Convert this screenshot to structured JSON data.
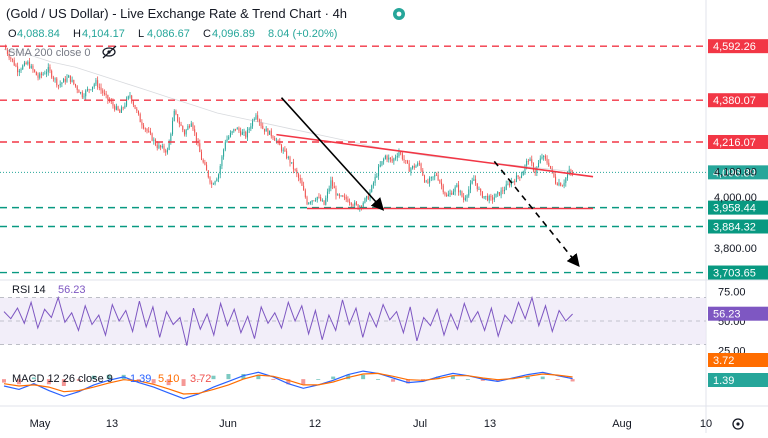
{
  "header": {
    "title": "(Gold / US Dollar) - Live Exchange Rate & Trend Chart · 4h",
    "ohlc": [
      {
        "label": "O",
        "value": "4,088.84"
      },
      {
        "label": "H",
        "value": "4,104.17"
      },
      {
        "label": "L",
        "value": "4,086.67"
      },
      {
        "label": "C",
        "value": "4,096.89"
      }
    ],
    "change": "8.04 (+0.20%)",
    "indicator_label": "SMA 200 close 0"
  },
  "colors": {
    "up": "#26a69a",
    "down": "#ef5350",
    "resistance": "#f23645",
    "support": "#089981",
    "rsi_line": "#7e57c2",
    "rsi_band": "#ede7f6",
    "macd_line": "#2962ff",
    "signal_line": "#ff6d00",
    "price_tag": "#2a2e39",
    "last_tag": "#26a69a"
  },
  "chart_data": [
    {
      "type": "candlestick",
      "title": "(Gold / US Dollar) - Live Exchange Rate & Trend Chart · 4h",
      "timeframe": "4h",
      "x_labels": [
        "May",
        "13",
        "Jun",
        "12",
        "Jul",
        "13",
        "Aug",
        "10"
      ],
      "ylim": [
        3690,
        4640
      ],
      "y_ticks": [
        3800,
        4000,
        4100
      ],
      "current_price": 4096.89,
      "path_points": [
        [
          0,
          4590
        ],
        [
          8,
          4500
        ],
        [
          14,
          4525
        ],
        [
          20,
          4470
        ],
        [
          26,
          4500
        ],
        [
          32,
          4440
        ],
        [
          38,
          4470
        ],
        [
          46,
          4400
        ],
        [
          54,
          4450
        ],
        [
          60,
          4390
        ],
        [
          68,
          4330
        ],
        [
          74,
          4400
        ],
        [
          80,
          4300
        ],
        [
          86,
          4240
        ],
        [
          90,
          4200
        ],
        [
          96,
          4180
        ],
        [
          100,
          4330
        ],
        [
          106,
          4250
        ],
        [
          110,
          4300
        ],
        [
          116,
          4150
        ],
        [
          122,
          4050
        ],
        [
          126,
          4090
        ],
        [
          130,
          4220
        ],
        [
          136,
          4270
        ],
        [
          142,
          4240
        ],
        [
          148,
          4330
        ],
        [
          152,
          4270
        ],
        [
          158,
          4240
        ],
        [
          164,
          4180
        ],
        [
          168,
          4140
        ],
        [
          174,
          4060
        ],
        [
          178,
          3980
        ],
        [
          184,
          4000
        ],
        [
          188,
          3970
        ],
        [
          192,
          4060
        ],
        [
          196,
          4000
        ],
        [
          202,
          3990
        ],
        [
          208,
          3960
        ],
        [
          214,
          4000
        ],
        [
          220,
          4110
        ],
        [
          224,
          4160
        ],
        [
          228,
          4140
        ],
        [
          232,
          4180
        ],
        [
          238,
          4110
        ],
        [
          244,
          4130
        ],
        [
          248,
          4050
        ],
        [
          254,
          4090
        ],
        [
          260,
          4000
        ],
        [
          266,
          4040
        ],
        [
          270,
          3990
        ],
        [
          276,
          4070
        ],
        [
          280,
          4010
        ],
        [
          286,
          3990
        ],
        [
          292,
          4020
        ],
        [
          298,
          4060
        ],
        [
          304,
          4090
        ],
        [
          308,
          4150
        ],
        [
          312,
          4100
        ],
        [
          316,
          4160
        ],
        [
          320,
          4130
        ],
        [
          324,
          4060
        ],
        [
          328,
          4050
        ],
        [
          332,
          4100
        ],
        [
          334,
          4090
        ]
      ],
      "series": [
        {
          "name": "SMA 200 close 0",
          "values": [
            4580,
            4560,
            4530,
            4510,
            4480,
            4450,
            4420,
            4390,
            4360,
            4330,
            4310,
            4290,
            4270,
            4250,
            4230,
            4210,
            4190,
            4175,
            4160,
            4150,
            4140,
            4130,
            4120,
            4110,
            4100
          ]
        }
      ],
      "horizontal_levels": [
        {
          "value": 4592.26,
          "label": "4,592.26",
          "kind": "resistance",
          "width": 1.4
        },
        {
          "value": 4380.07,
          "label": "4,380.07",
          "kind": "resistance",
          "width": 1.4
        },
        {
          "value": 4216.07,
          "label": "4,216.07",
          "kind": "resistance",
          "width": 1.4
        },
        {
          "value": 3958.44,
          "label": "3,958.44",
          "kind": "support",
          "width": 1.4
        },
        {
          "value": 3884.32,
          "label": "3,884.32",
          "kind": "support",
          "width": 1.4
        },
        {
          "value": 3703.65,
          "label": "3,703.65",
          "kind": "support",
          "width": 1.4
        }
      ],
      "trendlines": [
        {
          "from": [
            160,
            4245
          ],
          "to": [
            346,
            4080
          ],
          "style": "solid",
          "color": "resistance"
        },
        {
          "from": [
            178,
            3955
          ],
          "to": [
            346,
            3955
          ],
          "style": "solid",
          "color": "resistance"
        },
        {
          "from": [
            163,
            4390
          ],
          "to": [
            222,
            3955
          ],
          "style": "solid",
          "color": "#000000",
          "arrow": true
        },
        {
          "from": [
            288,
            4140
          ],
          "to": [
            337,
            3735
          ],
          "style": "dashed",
          "color": "#000000",
          "arrow": true
        }
      ]
    },
    {
      "type": "line",
      "title": "RSI 14",
      "value": "56.23",
      "ylim": [
        15,
        85
      ],
      "y_ticks": [
        25,
        50,
        75
      ],
      "y_tick_labels": [
        "25.00",
        "50.00",
        "75.00"
      ],
      "band": [
        30,
        70
      ],
      "series": [
        {
          "name": "RSI 14",
          "values": [
            58,
            52,
            61,
            48,
            66,
            44,
            60,
            53,
            70,
            49,
            57,
            42,
            63,
            47,
            55,
            38,
            64,
            50,
            59,
            41,
            67,
            45,
            62,
            36,
            58,
            47,
            53,
            29,
            61,
            43,
            56,
            38,
            65,
            46,
            60,
            40,
            54,
            35,
            62,
            48,
            57,
            44,
            66,
            50,
            63,
            39,
            59,
            34,
            55,
            42,
            68,
            47,
            61,
            36,
            57,
            45,
            64,
            51,
            58,
            40,
            62,
            33,
            53,
            46,
            60,
            38,
            56,
            43,
            65,
            49,
            58,
            42,
            61,
            37,
            55,
            48,
            66,
            52,
            70,
            46,
            63,
            41,
            59,
            50,
            56
          ]
        }
      ]
    },
    {
      "type": "line",
      "title": "MACD 12 26 close 9",
      "values_shown": [
        "1.39",
        "5.10",
        "3.72"
      ],
      "ylim": [
        -40,
        30
      ],
      "series": [
        {
          "name": "MACD",
          "values": [
            -12,
            -18,
            -8,
            -20,
            -30,
            -22,
            -10,
            -2,
            4,
            -6,
            -14,
            -24,
            -34,
            -26,
            -14,
            -4,
            6,
            12,
            4,
            -8,
            -16,
            -10,
            -2,
            8,
            14,
            10,
            2,
            -6,
            -4,
            4,
            10,
            6,
            0,
            -4,
            2,
            8,
            12,
            6,
            1
          ]
        },
        {
          "name": "Signal",
          "values": [
            -8,
            -12,
            -10,
            -14,
            -22,
            -20,
            -14,
            -7,
            -1,
            -3,
            -9,
            -17,
            -26,
            -25,
            -18,
            -10,
            0,
            7,
            5,
            -2,
            -10,
            -10,
            -5,
            3,
            9,
            10,
            5,
            -1,
            -2,
            1,
            6,
            6,
            2,
            -1,
            1,
            5,
            9,
            7,
            3.7
          ]
        }
      ]
    }
  ],
  "price_axis": {
    "last_price": "4,096.89",
    "rsi_value": "56.23",
    "macd_values": [
      "3.72",
      "1.39"
    ]
  },
  "toolbar": {
    "settings_icon": "gear-icon",
    "visibility_icon": "eye-slash-icon",
    "live_indicator": "live-dot-icon"
  }
}
